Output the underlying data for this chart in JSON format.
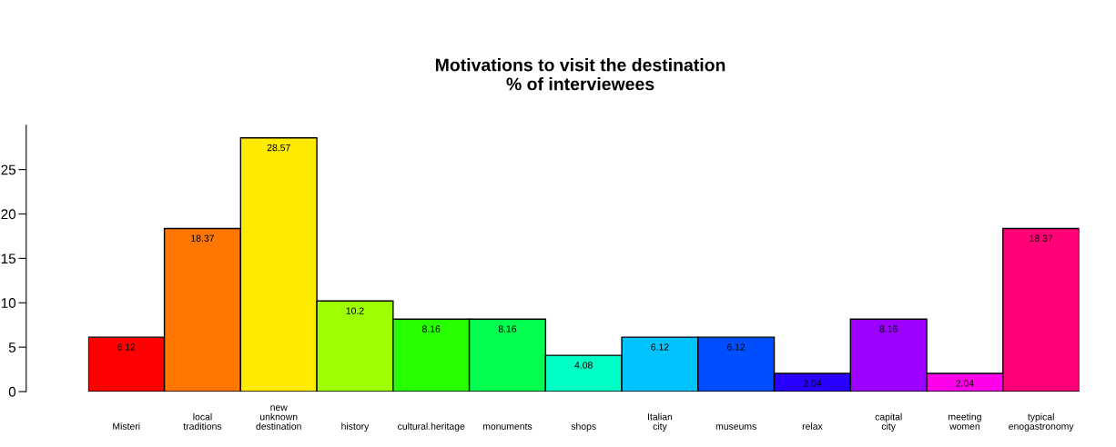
{
  "chart_data": {
    "type": "bar",
    "title": "Motivations to visit the destination\n% of interviewees",
    "categories": [
      "Misteri",
      "local\ntraditions",
      "new\nunknown\ndestination",
      "history",
      "cultural.heritage",
      "monuments",
      "shops",
      "Italian\ncity",
      "museums",
      "relax",
      "capital\ncity",
      "meeting\nwomen",
      "typical\nenogastronomy"
    ],
    "values": [
      6.12,
      18.37,
      28.57,
      10.2,
      8.16,
      8.16,
      4.08,
      6.12,
      6.12,
      2.04,
      8.16,
      2.04,
      18.37
    ],
    "colors": [
      "#ff0000",
      "#ff7600",
      "#ffeb00",
      "#9dff00",
      "#27ff00",
      "#00ff4e",
      "#00ffc4",
      "#00c4ff",
      "#004eff",
      "#2700ff",
      "#9d00ff",
      "#ff00eb",
      "#ff0076"
    ],
    "ylim": [
      0,
      30
    ],
    "yticks": [
      0,
      5,
      10,
      15,
      20,
      25
    ],
    "data_labels": true,
    "grid": false,
    "legend": false
  }
}
